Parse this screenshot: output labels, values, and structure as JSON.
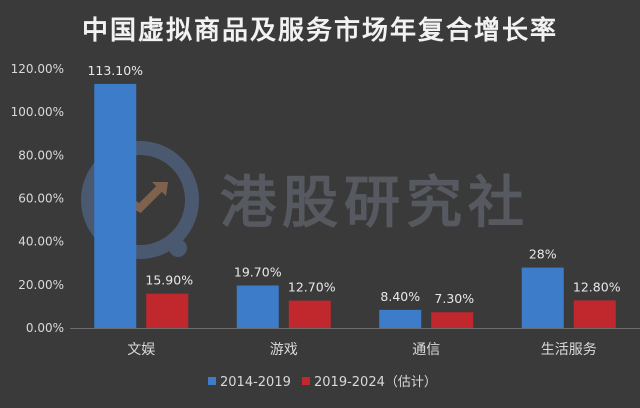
{
  "chart_data": {
    "type": "bar",
    "title": "中国虚拟商品及服务市场年复合增长率",
    "categories": [
      "文娱",
      "游戏",
      "通信",
      "生活服务"
    ],
    "series": [
      {
        "name": "2014-2019",
        "color": "#3d7cc9",
        "values": [
          113.1,
          19.7,
          8.4,
          28
        ],
        "labels": [
          "113.10%",
          "19.70%",
          "8.40%",
          "28%"
        ]
      },
      {
        "name": "2019-2024（估计）",
        "color": "#c0282d",
        "values": [
          15.9,
          12.7,
          7.3,
          12.8
        ],
        "labels": [
          "15.90%",
          "12.70%",
          "7.30%",
          "12.80%"
        ]
      }
    ],
    "ylim": [
      0,
      120
    ],
    "yticks": [
      0,
      20,
      40,
      60,
      80,
      100,
      120
    ],
    "ytick_labels": [
      "0.00%",
      "20.00%",
      "40.00%",
      "60.00%",
      "80.00%",
      "100.00%",
      "120.00%"
    ],
    "xlabel": "",
    "ylabel": "",
    "grid": false,
    "legend_position": "bottom"
  },
  "watermark": {
    "text": "港股研究社",
    "icon": "chart-magnifier-logo-icon"
  }
}
